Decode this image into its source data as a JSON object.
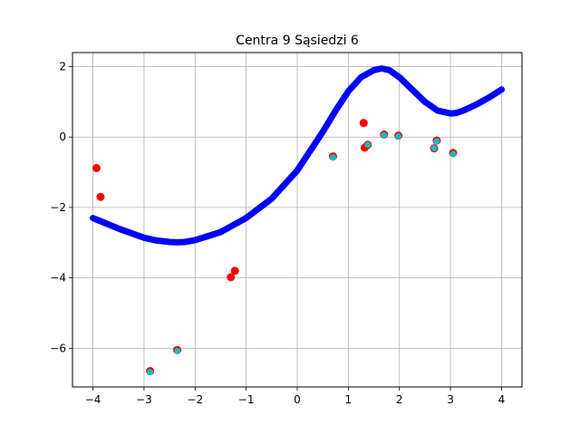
{
  "chart_data": {
    "type": "scatter",
    "title": "Centra 9 Sąsiedzi 6",
    "xlabel": "",
    "ylabel": "",
    "xlim": [
      -4.4,
      4.4
    ],
    "ylim": [
      -7.1,
      2.4
    ],
    "xticks": [
      -4,
      -3,
      -2,
      -1,
      0,
      1,
      2,
      3,
      4
    ],
    "xtick_labels": [
      "−4",
      "−3",
      "−2",
      "−1",
      "0",
      "1",
      "2",
      "3",
      "4"
    ],
    "yticks": [
      2,
      0,
      -2,
      -4,
      -6
    ],
    "ytick_labels": [
      "2",
      "0",
      "−2",
      "−4",
      "−6"
    ],
    "grid": true,
    "series": [
      {
        "marker": "circle",
        "color": "#ff0000",
        "points": [
          [
            -3.93,
            -0.88
          ],
          [
            -3.85,
            -1.7
          ],
          [
            -2.88,
            -6.65
          ],
          [
            -2.35,
            -6.05
          ],
          [
            -1.3,
            -3.98
          ],
          [
            -1.22,
            -3.8
          ],
          [
            0.7,
            -0.55
          ],
          [
            1.3,
            0.4
          ],
          [
            1.32,
            -0.3
          ],
          [
            1.38,
            -0.22
          ],
          [
            1.7,
            0.07
          ],
          [
            1.98,
            0.04
          ],
          [
            2.68,
            -0.32
          ],
          [
            2.73,
            -0.1
          ],
          [
            3.05,
            -0.45
          ]
        ]
      },
      {
        "marker": "circle",
        "color": "#00bfbf",
        "points": [
          [
            -2.88,
            -6.68
          ],
          [
            -2.35,
            -6.08
          ],
          [
            0.7,
            -0.58
          ],
          [
            1.38,
            -0.22
          ],
          [
            1.7,
            0.05
          ],
          [
            1.98,
            0.02
          ],
          [
            2.68,
            -0.32
          ],
          [
            2.73,
            -0.12
          ],
          [
            3.05,
            -0.48
          ]
        ]
      },
      {
        "marker": "line",
        "color": "#0000ff",
        "x": [
          -4.0,
          -3.5,
          -3.0,
          -2.75,
          -2.5,
          -2.35,
          -2.2,
          -2.0,
          -1.5,
          -1.0,
          -0.5,
          0.0,
          0.5,
          0.75,
          1.0,
          1.25,
          1.5,
          1.65,
          1.8,
          2.0,
          2.25,
          2.5,
          2.75,
          3.0,
          3.1,
          3.25,
          3.5,
          3.75,
          4.0
        ],
        "y": [
          -2.3,
          -2.6,
          -2.86,
          -2.94,
          -2.98,
          -2.99,
          -2.98,
          -2.93,
          -2.7,
          -2.3,
          -1.75,
          -0.95,
          0.15,
          0.75,
          1.3,
          1.7,
          1.9,
          1.95,
          1.9,
          1.7,
          1.35,
          1.0,
          0.75,
          0.67,
          0.68,
          0.75,
          0.92,
          1.12,
          1.35
        ]
      }
    ]
  }
}
